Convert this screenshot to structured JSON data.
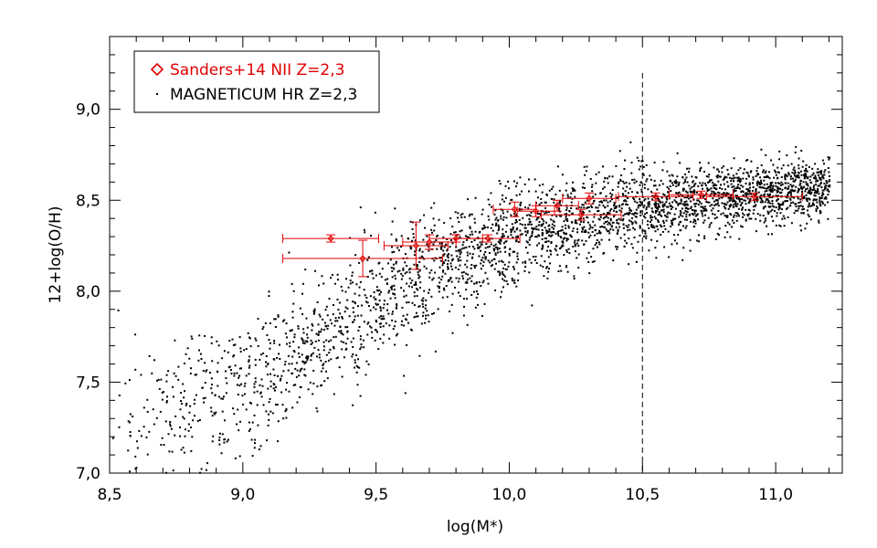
{
  "chart_data": {
    "type": "scatter",
    "title": "",
    "xlabel": "log(M*)",
    "ylabel": "12+log(O/H)",
    "xlim": [
      8.5,
      11.25
    ],
    "ylim": [
      7.0,
      9.4
    ],
    "xticks": [
      8.5,
      9.0,
      9.5,
      10.0,
      10.5,
      11.0
    ],
    "xtick_labels": [
      "8,5",
      "9,0",
      "9,5",
      "10,0",
      "10,5",
      "11,0"
    ],
    "yticks": [
      7.0,
      7.5,
      8.0,
      8.5,
      9.0
    ],
    "ytick_labels": [
      "7,0",
      "7,5",
      "8,0",
      "8,5",
      "9,0"
    ],
    "grid": false,
    "legend_position": "top-left",
    "reference_line": {
      "x": 10.5,
      "style": "dashed",
      "color": "#000000"
    },
    "series": [
      {
        "name": "Sanders+14 NII Z=2,3",
        "marker": "diamond",
        "color": "#e00000",
        "points": [
          {
            "x": 9.33,
            "y": 8.29,
            "xerr": 0.18,
            "yerr": 0.02
          },
          {
            "x": 9.45,
            "y": 8.18,
            "xerr": 0.3,
            "yerr": 0.1
          },
          {
            "x": 9.65,
            "y": 8.25,
            "xerr": 0.12,
            "yerr": 0.13
          },
          {
            "x": 9.7,
            "y": 8.27,
            "xerr": 0.1,
            "yerr": 0.04
          },
          {
            "x": 9.8,
            "y": 8.29,
            "xerr": 0.1,
            "yerr": 0.02
          },
          {
            "x": 9.92,
            "y": 8.29,
            "xerr": 0.12,
            "yerr": 0.02
          },
          {
            "x": 10.02,
            "y": 8.45,
            "xerr": 0.08,
            "yerr": 0.04
          },
          {
            "x": 10.1,
            "y": 8.44,
            "xerr": 0.07,
            "yerr": 0.03
          },
          {
            "x": 10.18,
            "y": 8.47,
            "xerr": 0.08,
            "yerr": 0.03
          },
          {
            "x": 10.27,
            "y": 8.42,
            "xerr": 0.15,
            "yerr": 0.03
          },
          {
            "x": 10.3,
            "y": 8.51,
            "xerr": 0.1,
            "yerr": 0.03
          },
          {
            "x": 10.55,
            "y": 8.52,
            "xerr": 0.14,
            "yerr": 0.02
          },
          {
            "x": 10.72,
            "y": 8.53,
            "xerr": 0.12,
            "yerr": 0.02
          },
          {
            "x": 10.92,
            "y": 8.52,
            "xerr": 0.18,
            "yerr": 0.02
          }
        ]
      },
      {
        "name": "MAGNETICUM HR Z=2,3",
        "marker": "dot",
        "color": "#000000",
        "n_points": 3200,
        "x_range": [
          8.5,
          11.2
        ],
        "trend": [
          {
            "x": 8.6,
            "y": 7.3
          },
          {
            "x": 9.0,
            "y": 7.45
          },
          {
            "x": 9.5,
            "y": 7.95
          },
          {
            "x": 10.0,
            "y": 8.3
          },
          {
            "x": 10.5,
            "y": 8.47
          },
          {
            "x": 11.0,
            "y": 8.55
          },
          {
            "x": 11.2,
            "y": 8.57
          }
        ],
        "scatter_std": [
          {
            "x": 8.6,
            "s": 0.22
          },
          {
            "x": 9.5,
            "s": 0.18
          },
          {
            "x": 10.5,
            "s": 0.1
          },
          {
            "x": 11.2,
            "s": 0.08
          }
        ]
      }
    ]
  },
  "legend": {
    "items": [
      {
        "symbol": "◇",
        "label": "Sanders+14 NII Z=2,3",
        "color": "#e00000"
      },
      {
        "symbol": "·",
        "label": "MAGNETICUM HR Z=2,3",
        "color": "#000000"
      }
    ]
  }
}
